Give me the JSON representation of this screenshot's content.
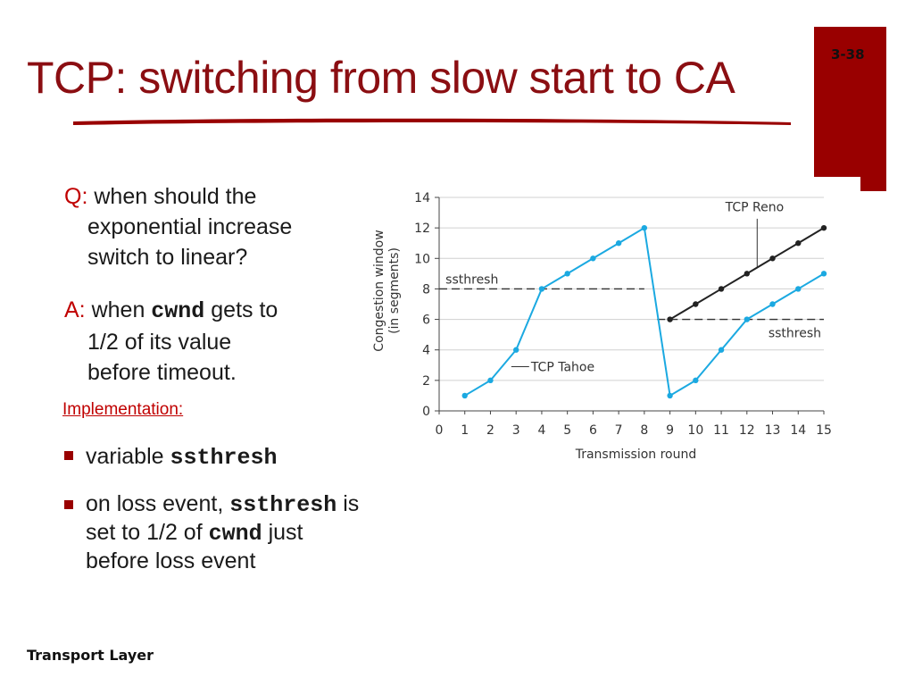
{
  "slide": {
    "number": "3-38",
    "title": "TCP: switching from slow start to CA",
    "footer": "Transport Layer"
  },
  "question": {
    "label": "Q:",
    "line1": "when should the",
    "line2": "exponential increase",
    "line3": "switch to linear?"
  },
  "answer": {
    "label": "A:",
    "line1_pre": "when",
    "line1_code": "cwnd",
    "line1_post": "gets to",
    "line2": "1/2 of its value",
    "line3": "before timeout."
  },
  "implementation": {
    "heading": "Implementation:",
    "bullet1": {
      "pre": "variable",
      "code": "ssthresh"
    },
    "bullet2": {
      "pre": "on loss event,",
      "code1": "ssthresh",
      "mid": "is",
      "line2_pre": "set to 1/2 of",
      "code2": "cwnd",
      "line2_post": "just",
      "line3": "before loss event"
    }
  },
  "colors": {
    "accent": "#990000",
    "title": "#8b0e12",
    "tahoe": "#1ba9e1",
    "reno": "#222222"
  },
  "chart_data": {
    "type": "line",
    "xlabel": "Transmission round",
    "ylabel": "Congestion window (in segments)",
    "ylabel_lines": [
      "Congestion window",
      "(in segments)"
    ],
    "xlim": [
      0,
      15
    ],
    "ylim": [
      0,
      14
    ],
    "xticks": [
      0,
      1,
      2,
      3,
      4,
      5,
      6,
      7,
      8,
      9,
      10,
      11,
      12,
      13,
      14,
      15
    ],
    "yticks": [
      0,
      2,
      4,
      6,
      8,
      10,
      12,
      14
    ],
    "grid": true,
    "series": [
      {
        "name": "TCP Tahoe",
        "color": "#1ba9e1",
        "x": [
          1,
          2,
          3,
          4,
          5,
          6,
          7,
          8,
          9,
          10,
          11,
          12,
          13,
          14,
          15
        ],
        "y": [
          1,
          2,
          4,
          8,
          9,
          10,
          11,
          12,
          1,
          2,
          4,
          6,
          7,
          8,
          9
        ]
      },
      {
        "name": "TCP Reno",
        "color": "#222222",
        "x": [
          9,
          10,
          11,
          12,
          13,
          14,
          15
        ],
        "y": [
          6,
          7,
          8,
          9,
          10,
          11,
          12
        ]
      }
    ],
    "thresholds": [
      {
        "label": "ssthresh",
        "y": 8,
        "x_from": 0,
        "x_to": 8
      },
      {
        "label": "ssthresh",
        "y": 6,
        "x_from": 8.5,
        "x_to": 15
      }
    ],
    "annotations": [
      {
        "text": "TCP Reno",
        "points_to": {
          "x": 12.4,
          "y": 9.4
        }
      },
      {
        "text": "TCP Tahoe",
        "points_to": {
          "x": 3.5,
          "y": 6
        }
      }
    ]
  }
}
